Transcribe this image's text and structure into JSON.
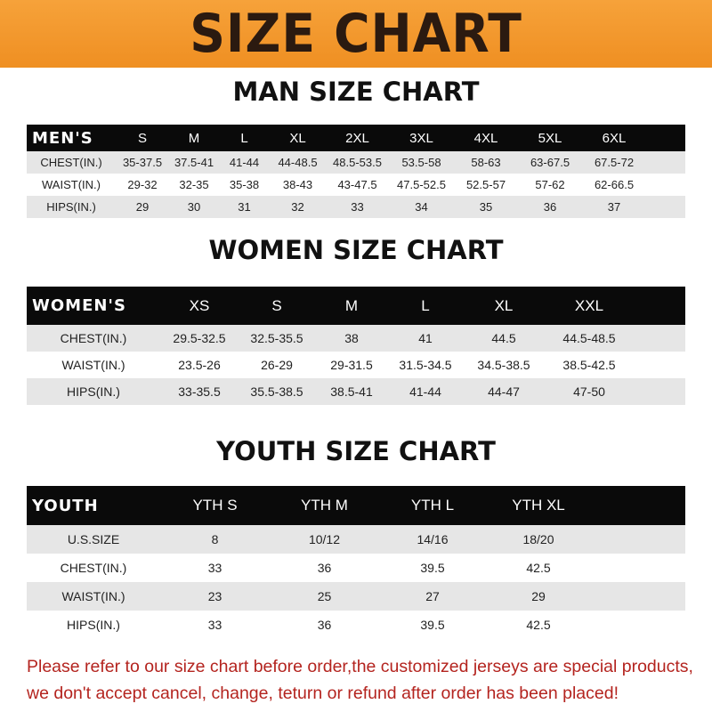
{
  "banner": {
    "title": "SIZE CHART",
    "color": "#f39a2b"
  },
  "men": {
    "title": "MAN SIZE CHART",
    "header": [
      "MEN'S",
      "S",
      "M",
      "L",
      "XL",
      "2XL",
      "3XL",
      "4XL",
      "5XL",
      "6XL"
    ],
    "rows": [
      [
        "CHEST(IN.)",
        "35-37.5",
        "37.5-41",
        "41-44",
        "44-48.5",
        "48.5-53.5",
        "53.5-58",
        "58-63",
        "63-67.5",
        "67.5-72"
      ],
      [
        "WAIST(IN.)",
        "29-32",
        "32-35",
        "35-38",
        "38-43",
        "43-47.5",
        "47.5-52.5",
        "52.5-57",
        "57-62",
        "62-66.5"
      ],
      [
        "HIPS(IN.)",
        "29",
        "30",
        "31",
        "32",
        "33",
        "34",
        "35",
        "36",
        "37"
      ]
    ]
  },
  "women": {
    "title": "WOMEN SIZE CHART",
    "header": [
      "WOMEN'S",
      "XS",
      "S",
      "M",
      "L",
      "XL",
      "XXL"
    ],
    "rows": [
      [
        "CHEST(IN.)",
        "29.5-32.5",
        "32.5-35.5",
        "38",
        "41",
        "44.5",
        "44.5-48.5"
      ],
      [
        "WAIST(IN.)",
        "23.5-26",
        "26-29",
        "29-31.5",
        "31.5-34.5",
        "34.5-38.5",
        "38.5-42.5"
      ],
      [
        "HIPS(IN.)",
        "33-35.5",
        "35.5-38.5",
        "38.5-41",
        "41-44",
        "44-47",
        "47-50"
      ]
    ]
  },
  "youth": {
    "title": "YOUTH SIZE CHART",
    "header": [
      "YOUTH",
      "YTH S",
      "YTH M",
      "YTH L",
      "YTH XL"
    ],
    "rows": [
      [
        "U.S.SIZE",
        "8",
        "10/12",
        "14/16",
        "18/20"
      ],
      [
        "CHEST(IN.)",
        "33",
        "36",
        "39.5",
        "42.5"
      ],
      [
        "WAIST(IN.)",
        "23",
        "25",
        "27",
        "29"
      ],
      [
        "HIPS(IN.)",
        "33",
        "36",
        "39.5",
        "42.5"
      ]
    ]
  },
  "notice": {
    "line1": "Please refer to our size chart before order,the customized jerseys are special products,",
    "line2": "we don't accept cancel, change, teturn or refund after order has been placed!",
    "color": "#b4241f"
  }
}
